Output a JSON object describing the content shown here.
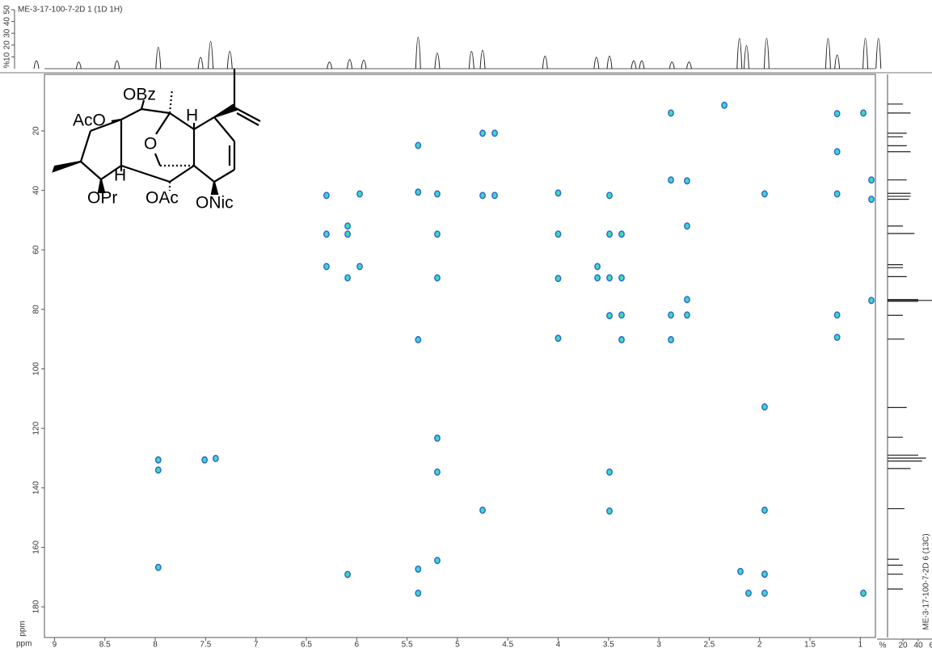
{
  "chart_data": {
    "type": "scatter",
    "title": "ME-3-17-100-7-2D 1 (1D 1H)",
    "side_title": "ME-3-17-100-7-2D 6 (13C)",
    "x_label": "ppm",
    "y_label": "ppm",
    "xlim": [
      9.1,
      0.85
    ],
    "ylim": [
      1,
      190.3
    ],
    "xticks": [
      9,
      8.5,
      8,
      7.5,
      7,
      6.5,
      6,
      5.5,
      5,
      4.5,
      4,
      3.5,
      3,
      2.5,
      2,
      1.5,
      1
    ],
    "yticks": [
      20,
      40,
      60,
      80,
      100,
      120,
      140,
      160,
      180
    ],
    "colors": {
      "peak_fill": "#3fd9b8",
      "peak_edge": "#2a62d8",
      "spectrum": "#222222"
    },
    "peaks": {
      "x": [
        2.35,
        2.88,
        1.23,
        0.97,
        5.39,
        4.75,
        4.63,
        1.23,
        2.88,
        2.72,
        0.89,
        6.3,
        5.97,
        5.39,
        5.2,
        4.75,
        4.63,
        4.0,
        3.49,
        1.95,
        1.23,
        0.89,
        6.09,
        6.3,
        6.09,
        5.2,
        4.0,
        3.49,
        3.37,
        2.72,
        6.3,
        5.97,
        3.61,
        6.09,
        5.2,
        4.0,
        3.61,
        3.49,
        3.37,
        2.72,
        0.89,
        3.49,
        3.37,
        2.88,
        2.72,
        1.23,
        5.39,
        4.0,
        3.37,
        2.88,
        1.23,
        1.95,
        5.2,
        7.97,
        7.97,
        7.51,
        7.4,
        5.2,
        3.49,
        4.75,
        3.49,
        1.95,
        7.97,
        6.09,
        5.2,
        5.39,
        5.39,
        2.19,
        2.11,
        1.95,
        1.95,
        0.97
      ],
      "y": [
        11.4,
        14.0,
        14.2,
        14.0,
        24.9,
        20.8,
        20.8,
        27.0,
        36.5,
        36.8,
        36.5,
        41.7,
        41.2,
        40.6,
        41.2,
        41.7,
        41.7,
        40.9,
        41.7,
        41.2,
        41.2,
        43.0,
        52.0,
        54.7,
        54.7,
        54.7,
        54.7,
        54.7,
        54.7,
        52.0,
        65.6,
        65.6,
        65.6,
        69.4,
        69.4,
        69.6,
        69.4,
        69.4,
        69.4,
        76.7,
        77.0,
        82.1,
        81.9,
        81.9,
        81.9,
        81.9,
        90.2,
        89.7,
        90.2,
        90.2,
        89.4,
        112.8,
        123.3,
        130.6,
        134.0,
        130.6,
        130.1,
        134.7,
        134.7,
        147.5,
        147.8,
        147.5,
        166.7,
        169.1,
        164.4,
        167.3,
        175.4,
        168.1,
        175.4,
        169.0,
        175.4,
        175.4
      ]
    },
    "top_projection": {
      "ylim": [
        0,
        50
      ],
      "yticks": [
        10,
        20,
        30,
        40,
        50
      ],
      "unit": "%",
      "x": [
        9.18,
        8.76,
        8.38,
        7.97,
        7.55,
        7.45,
        7.26,
        6.27,
        6.07,
        5.93,
        5.39,
        5.2,
        4.86,
        4.75,
        4.13,
        3.62,
        3.49,
        3.25,
        3.17,
        2.87,
        2.7,
        2.2,
        2.13,
        1.93,
        1.32,
        1.23,
        0.95,
        0.82
      ],
      "values": [
        12,
        10,
        12,
        35,
        18,
        45,
        28,
        10,
        14,
        13,
        52,
        25,
        28,
        30,
        20,
        18,
        20,
        12,
        12,
        10,
        10,
        50,
        38,
        50,
        50,
        22,
        50,
        50
      ]
    },
    "right_projection": {
      "xlim": [
        0,
        60
      ],
      "xticks": [
        20,
        40,
        60
      ],
      "unit": "%",
      "y": [
        11,
        14,
        20.8,
        22,
        25,
        27,
        36.5,
        41,
        42,
        43,
        52,
        54.5,
        65,
        66,
        69,
        76.7,
        77,
        77.3,
        82,
        90,
        113,
        123,
        129,
        130,
        131,
        133.5,
        147,
        164,
        166,
        169,
        174
      ],
      "values": [
        20,
        30,
        25,
        20,
        25,
        30,
        25,
        30,
        30,
        28,
        20,
        35,
        20,
        20,
        25,
        40,
        70,
        40,
        20,
        22,
        25,
        20,
        40,
        50,
        45,
        30,
        22,
        15,
        20,
        20,
        20
      ]
    }
  },
  "molecule": {
    "labels": [
      "AcO",
      "OBz",
      "O",
      "H",
      "H",
      "OPr",
      "OAc",
      "ONic"
    ]
  }
}
